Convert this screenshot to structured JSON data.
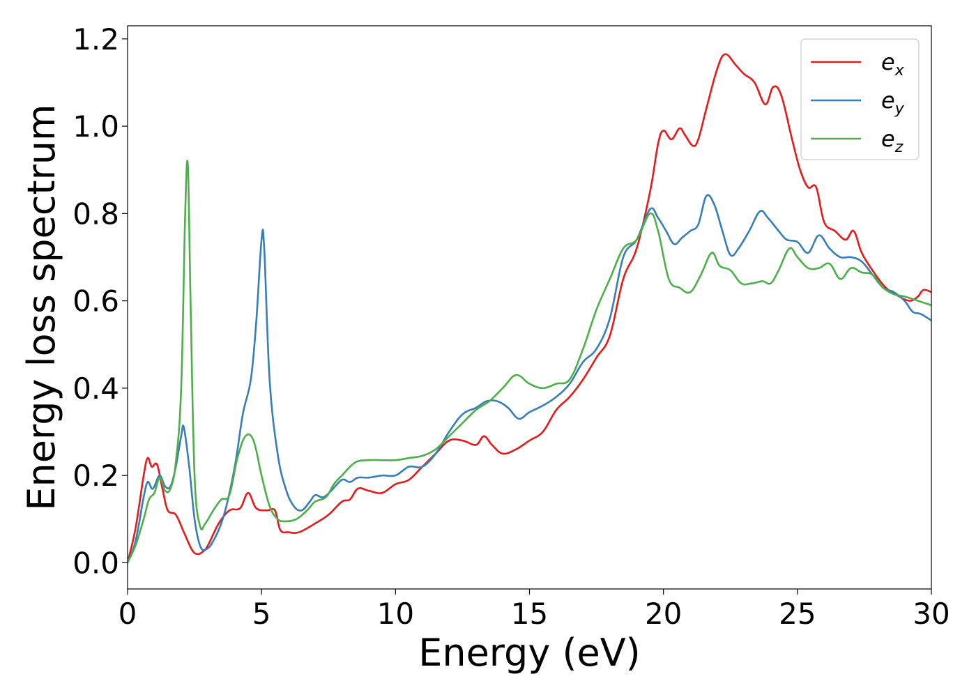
{
  "chart_data": {
    "type": "line",
    "title": "",
    "xlabel": "Energy (eV)",
    "ylabel": "Energy loss spectrum",
    "xlim": [
      0,
      30
    ],
    "ylim": [
      -0.06,
      1.23
    ],
    "xticks": [
      0,
      5,
      10,
      15,
      20,
      25,
      30
    ],
    "yticks": [
      0.0,
      0.2,
      0.4,
      0.6,
      0.8,
      1.0,
      1.2
    ],
    "xtick_labels": [
      "0",
      "5",
      "10",
      "15",
      "20",
      "25",
      "30"
    ],
    "ytick_labels": [
      "0.0",
      "0.2",
      "0.4",
      "0.6",
      "0.8",
      "1.0",
      "1.2"
    ],
    "grid": false,
    "legend_position": "top-right",
    "series": [
      {
        "name": "e_x",
        "legend_main": "e",
        "legend_sub": "x",
        "color": "#e41a1c",
        "points": [
          [
            0,
            0.0
          ],
          [
            0.3,
            0.08
          ],
          [
            0.6,
            0.2
          ],
          [
            0.75,
            0.24
          ],
          [
            0.9,
            0.22
          ],
          [
            1.1,
            0.225
          ],
          [
            1.3,
            0.17
          ],
          [
            1.5,
            0.12
          ],
          [
            1.8,
            0.11
          ],
          [
            2.1,
            0.07
          ],
          [
            2.4,
            0.03
          ],
          [
            2.6,
            0.02
          ],
          [
            2.8,
            0.025
          ],
          [
            3.0,
            0.04
          ],
          [
            3.4,
            0.09
          ],
          [
            3.8,
            0.12
          ],
          [
            4.2,
            0.125
          ],
          [
            4.5,
            0.16
          ],
          [
            4.8,
            0.125
          ],
          [
            5.2,
            0.12
          ],
          [
            5.5,
            0.12
          ],
          [
            5.7,
            0.075
          ],
          [
            6.0,
            0.07
          ],
          [
            6.4,
            0.07
          ],
          [
            7.0,
            0.09
          ],
          [
            7.5,
            0.11
          ],
          [
            8.0,
            0.14
          ],
          [
            8.3,
            0.145
          ],
          [
            8.6,
            0.17
          ],
          [
            9.0,
            0.165
          ],
          [
            9.5,
            0.16
          ],
          [
            10.0,
            0.18
          ],
          [
            10.5,
            0.19
          ],
          [
            11.0,
            0.22
          ],
          [
            11.5,
            0.25
          ],
          [
            12.0,
            0.28
          ],
          [
            12.5,
            0.28
          ],
          [
            13.0,
            0.27
          ],
          [
            13.3,
            0.29
          ],
          [
            13.6,
            0.27
          ],
          [
            14.0,
            0.25
          ],
          [
            14.5,
            0.26
          ],
          [
            15.0,
            0.28
          ],
          [
            15.5,
            0.3
          ],
          [
            16.0,
            0.35
          ],
          [
            16.5,
            0.38
          ],
          [
            17.0,
            0.42
          ],
          [
            17.5,
            0.47
          ],
          [
            18.0,
            0.52
          ],
          [
            18.5,
            0.65
          ],
          [
            19.0,
            0.72
          ],
          [
            19.5,
            0.85
          ],
          [
            19.8,
            0.96
          ],
          [
            20.0,
            0.99
          ],
          [
            20.3,
            0.97
          ],
          [
            20.6,
            0.995
          ],
          [
            20.8,
            0.98
          ],
          [
            21.1,
            0.955
          ],
          [
            21.3,
            0.97
          ],
          [
            21.6,
            1.04
          ],
          [
            22.0,
            1.13
          ],
          [
            22.3,
            1.165
          ],
          [
            22.7,
            1.14
          ],
          [
            23.0,
            1.12
          ],
          [
            23.4,
            1.1
          ],
          [
            23.8,
            1.05
          ],
          [
            24.1,
            1.09
          ],
          [
            24.4,
            1.07
          ],
          [
            24.8,
            0.97
          ],
          [
            25.1,
            0.9
          ],
          [
            25.4,
            0.86
          ],
          [
            25.7,
            0.86
          ],
          [
            26.0,
            0.78
          ],
          [
            26.4,
            0.76
          ],
          [
            26.8,
            0.74
          ],
          [
            27.1,
            0.76
          ],
          [
            27.4,
            0.71
          ],
          [
            27.8,
            0.67
          ],
          [
            28.3,
            0.63
          ],
          [
            28.8,
            0.61
          ],
          [
            29.2,
            0.6
          ],
          [
            29.5,
            0.61
          ],
          [
            29.7,
            0.625
          ],
          [
            30.0,
            0.62
          ]
        ]
      },
      {
        "name": "e_y",
        "legend_main": "e",
        "legend_sub": "y",
        "color": "#377eb8",
        "points": [
          [
            0,
            0.0
          ],
          [
            0.3,
            0.05
          ],
          [
            0.6,
            0.15
          ],
          [
            0.75,
            0.185
          ],
          [
            0.9,
            0.17
          ],
          [
            1.0,
            0.175
          ],
          [
            1.2,
            0.2
          ],
          [
            1.4,
            0.175
          ],
          [
            1.6,
            0.175
          ],
          [
            1.8,
            0.22
          ],
          [
            2.0,
            0.29
          ],
          [
            2.1,
            0.31
          ],
          [
            2.3,
            0.22
          ],
          [
            2.5,
            0.1
          ],
          [
            2.7,
            0.04
          ],
          [
            2.9,
            0.03
          ],
          [
            3.2,
            0.05
          ],
          [
            3.6,
            0.11
          ],
          [
            4.0,
            0.22
          ],
          [
            4.3,
            0.34
          ],
          [
            4.6,
            0.42
          ],
          [
            4.8,
            0.55
          ],
          [
            5.0,
            0.74
          ],
          [
            5.1,
            0.72
          ],
          [
            5.3,
            0.42
          ],
          [
            5.6,
            0.25
          ],
          [
            5.9,
            0.17
          ],
          [
            6.2,
            0.13
          ],
          [
            6.5,
            0.12
          ],
          [
            6.8,
            0.14
          ],
          [
            7.0,
            0.155
          ],
          [
            7.3,
            0.15
          ],
          [
            7.6,
            0.165
          ],
          [
            8.0,
            0.19
          ],
          [
            8.3,
            0.185
          ],
          [
            8.6,
            0.195
          ],
          [
            9.0,
            0.195
          ],
          [
            9.5,
            0.2
          ],
          [
            10.0,
            0.2
          ],
          [
            10.5,
            0.22
          ],
          [
            11.0,
            0.22
          ],
          [
            11.5,
            0.25
          ],
          [
            12.0,
            0.3
          ],
          [
            12.5,
            0.34
          ],
          [
            13.0,
            0.355
          ],
          [
            13.4,
            0.37
          ],
          [
            13.8,
            0.37
          ],
          [
            14.2,
            0.355
          ],
          [
            14.6,
            0.33
          ],
          [
            15.0,
            0.345
          ],
          [
            15.5,
            0.36
          ],
          [
            16.0,
            0.38
          ],
          [
            16.5,
            0.41
          ],
          [
            17.0,
            0.46
          ],
          [
            17.5,
            0.49
          ],
          [
            18.0,
            0.56
          ],
          [
            18.5,
            0.7
          ],
          [
            19.0,
            0.74
          ],
          [
            19.5,
            0.81
          ],
          [
            19.8,
            0.79
          ],
          [
            20.1,
            0.76
          ],
          [
            20.4,
            0.73
          ],
          [
            20.7,
            0.745
          ],
          [
            21.0,
            0.76
          ],
          [
            21.3,
            0.775
          ],
          [
            21.6,
            0.84
          ],
          [
            21.9,
            0.82
          ],
          [
            22.2,
            0.76
          ],
          [
            22.5,
            0.705
          ],
          [
            22.8,
            0.72
          ],
          [
            23.2,
            0.76
          ],
          [
            23.6,
            0.805
          ],
          [
            23.9,
            0.79
          ],
          [
            24.3,
            0.76
          ],
          [
            24.6,
            0.74
          ],
          [
            25.0,
            0.735
          ],
          [
            25.4,
            0.71
          ],
          [
            25.8,
            0.75
          ],
          [
            26.2,
            0.72
          ],
          [
            26.6,
            0.7
          ],
          [
            27.0,
            0.7
          ],
          [
            27.4,
            0.69
          ],
          [
            27.8,
            0.66
          ],
          [
            28.2,
            0.63
          ],
          [
            28.6,
            0.62
          ],
          [
            29.0,
            0.6
          ],
          [
            29.3,
            0.575
          ],
          [
            29.6,
            0.57
          ],
          [
            30.0,
            0.555
          ]
        ]
      },
      {
        "name": "e_z",
        "legend_main": "e",
        "legend_sub": "z",
        "color": "#4daf4a",
        "points": [
          [
            0,
            0.0
          ],
          [
            0.3,
            0.04
          ],
          [
            0.6,
            0.1
          ],
          [
            0.8,
            0.145
          ],
          [
            1.0,
            0.16
          ],
          [
            1.2,
            0.195
          ],
          [
            1.4,
            0.165
          ],
          [
            1.6,
            0.17
          ],
          [
            1.8,
            0.23
          ],
          [
            2.0,
            0.4
          ],
          [
            2.15,
            0.8
          ],
          [
            2.25,
            0.91
          ],
          [
            2.35,
            0.6
          ],
          [
            2.5,
            0.2
          ],
          [
            2.7,
            0.085
          ],
          [
            2.9,
            0.09
          ],
          [
            3.2,
            0.12
          ],
          [
            3.5,
            0.145
          ],
          [
            3.8,
            0.155
          ],
          [
            4.1,
            0.24
          ],
          [
            4.4,
            0.29
          ],
          [
            4.7,
            0.28
          ],
          [
            5.0,
            0.2
          ],
          [
            5.3,
            0.13
          ],
          [
            5.6,
            0.1
          ],
          [
            5.9,
            0.095
          ],
          [
            6.3,
            0.1
          ],
          [
            6.7,
            0.12
          ],
          [
            7.0,
            0.14
          ],
          [
            7.4,
            0.15
          ],
          [
            7.7,
            0.18
          ],
          [
            8.0,
            0.2
          ],
          [
            8.5,
            0.23
          ],
          [
            9.0,
            0.235
          ],
          [
            9.5,
            0.235
          ],
          [
            10.0,
            0.235
          ],
          [
            10.5,
            0.24
          ],
          [
            11.0,
            0.245
          ],
          [
            11.5,
            0.26
          ],
          [
            12.0,
            0.29
          ],
          [
            12.5,
            0.32
          ],
          [
            13.0,
            0.35
          ],
          [
            13.5,
            0.37
          ],
          [
            14.0,
            0.4
          ],
          [
            14.5,
            0.43
          ],
          [
            15.0,
            0.41
          ],
          [
            15.5,
            0.4
          ],
          [
            16.0,
            0.41
          ],
          [
            16.5,
            0.42
          ],
          [
            17.0,
            0.49
          ],
          [
            17.5,
            0.58
          ],
          [
            18.0,
            0.65
          ],
          [
            18.5,
            0.72
          ],
          [
            19.0,
            0.74
          ],
          [
            19.5,
            0.8
          ],
          [
            19.8,
            0.76
          ],
          [
            20.2,
            0.65
          ],
          [
            20.6,
            0.63
          ],
          [
            21.0,
            0.62
          ],
          [
            21.4,
            0.66
          ],
          [
            21.8,
            0.71
          ],
          [
            22.1,
            0.68
          ],
          [
            22.5,
            0.67
          ],
          [
            22.9,
            0.64
          ],
          [
            23.3,
            0.64
          ],
          [
            23.7,
            0.645
          ],
          [
            24.0,
            0.64
          ],
          [
            24.3,
            0.67
          ],
          [
            24.7,
            0.72
          ],
          [
            25.0,
            0.7
          ],
          [
            25.4,
            0.675
          ],
          [
            25.8,
            0.675
          ],
          [
            26.2,
            0.685
          ],
          [
            26.6,
            0.65
          ],
          [
            27.0,
            0.675
          ],
          [
            27.4,
            0.665
          ],
          [
            27.8,
            0.66
          ],
          [
            28.2,
            0.63
          ],
          [
            28.6,
            0.615
          ],
          [
            29.0,
            0.61
          ],
          [
            29.5,
            0.6
          ],
          [
            30.0,
            0.59
          ]
        ]
      }
    ]
  }
}
